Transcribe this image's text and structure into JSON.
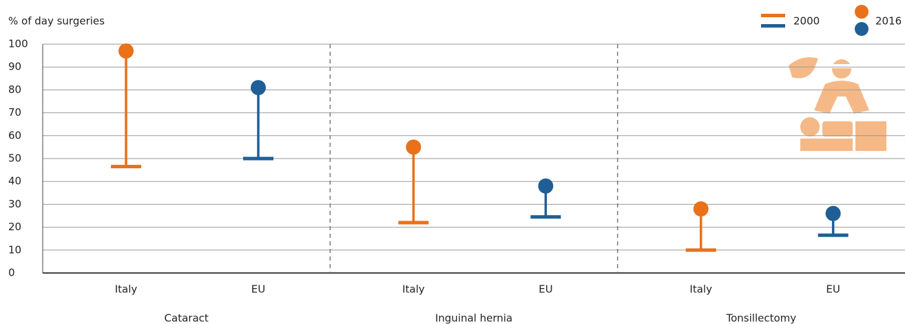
{
  "chart_data": {
    "type": "dumbbell",
    "y_label": "% of day surgeries",
    "groups": [
      "Cataract",
      "Inguinal hernia",
      "Tonsillectomy"
    ],
    "categories": [
      "Italy",
      "EU",
      "Italy",
      "EU",
      "Italy",
      "EU"
    ],
    "colors": [
      "#e8711a",
      "#1f5f96",
      "#e8711a",
      "#1f5f96",
      "#e8711a",
      "#1f5f96"
    ],
    "series": [
      {
        "name": "2000",
        "marker": "bar",
        "values": [
          46.5,
          50,
          22,
          24.5,
          10,
          16.5
        ]
      },
      {
        "name": "2016",
        "marker": "dot",
        "values": [
          97,
          81,
          55,
          38,
          28,
          26
        ]
      }
    ],
    "ylim": [
      0,
      100
    ],
    "yticks": [
      0,
      10,
      20,
      30,
      40,
      50,
      60,
      70,
      80,
      90,
      100
    ],
    "grid": true
  }
}
